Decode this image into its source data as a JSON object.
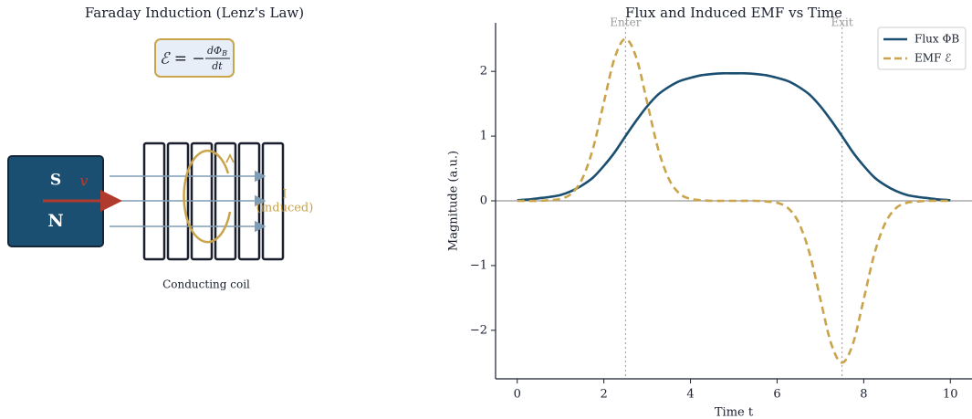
{
  "diagram": {
    "title": "Faraday Induction (Lenz's Law)",
    "formula": {
      "lhs": "ℰ = −",
      "numerator": "dΦ",
      "numerator_sub": "B",
      "denominator": "dt"
    },
    "magnet": {
      "south": "S",
      "north": "N",
      "velocity": "v"
    },
    "current": {
      "symbol": "I",
      "note": "(induced)"
    },
    "coil_label": "Conducting coil"
  },
  "chart_data": {
    "type": "line",
    "title": "Flux and Induced EMF vs Time",
    "xlabel": "Time t",
    "ylabel": "Magnitude (a.u.)",
    "x": [
      0,
      0.25,
      0.5,
      0.75,
      1,
      1.25,
      1.5,
      1.75,
      2,
      2.25,
      2.5,
      2.75,
      3,
      3.25,
      3.5,
      3.75,
      4,
      4.25,
      4.5,
      4.75,
      5,
      5.25,
      5.5,
      5.75,
      6,
      6.25,
      6.5,
      6.75,
      7,
      7.25,
      7.5,
      7.75,
      8,
      8.25,
      8.5,
      8.75,
      9,
      9.25,
      9.5,
      9.75,
      10
    ],
    "series": [
      {
        "name": "Flux ΦB",
        "color": "#1b4f72",
        "dash": false,
        "values": [
          0.01,
          0.02,
          0.04,
          0.06,
          0.09,
          0.15,
          0.24,
          0.36,
          0.54,
          0.75,
          1.0,
          1.24,
          1.46,
          1.64,
          1.76,
          1.85,
          1.9,
          1.94,
          1.96,
          1.97,
          1.97,
          1.97,
          1.96,
          1.94,
          1.9,
          1.85,
          1.76,
          1.64,
          1.46,
          1.24,
          1.0,
          0.75,
          0.54,
          0.36,
          0.24,
          0.15,
          0.09,
          0.06,
          0.04,
          0.02,
          0.01
        ]
      },
      {
        "name": "EMF ℰ",
        "color": "#c9a44a",
        "dash": true,
        "values": [
          0,
          0,
          0,
          0.01,
          0.03,
          0.11,
          0.34,
          0.81,
          1.52,
          2.21,
          2.5,
          2.21,
          1.52,
          0.81,
          0.34,
          0.11,
          0.03,
          0.01,
          0,
          0,
          0,
          0,
          0,
          -0.01,
          -0.03,
          -0.11,
          -0.34,
          -0.81,
          -1.52,
          -2.21,
          -2.5,
          -2.21,
          -1.52,
          -0.81,
          -0.34,
          -0.11,
          -0.03,
          -0.01,
          0,
          0,
          0
        ]
      }
    ],
    "annotations": [
      {
        "x": 2.5,
        "label": "Enter"
      },
      {
        "x": 7.5,
        "label": "Exit"
      }
    ],
    "hlines": [
      0
    ],
    "xlim": [
      -0.5,
      10.5
    ],
    "ylim": [
      -2.75,
      2.75
    ],
    "xticks": [
      0,
      2,
      4,
      6,
      8,
      10
    ],
    "yticks": [
      {
        "value": -2,
        "label": "−2"
      },
      {
        "value": -1,
        "label": "−1"
      },
      0,
      1,
      2
    ],
    "legend": "upper right"
  }
}
